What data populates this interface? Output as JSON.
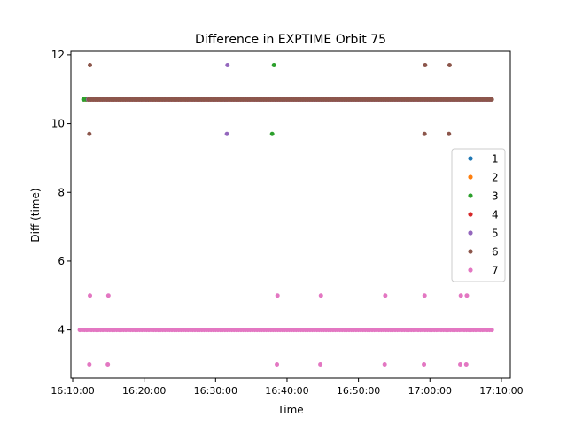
{
  "chart_data": {
    "type": "scatter",
    "title": "Difference in EXPTIME Orbit 75",
    "xlabel": "Time",
    "ylabel": "Diff (time)",
    "xlim": [
      "16:09:45",
      "17:11:15"
    ],
    "ylim": [
      2.6,
      12.1
    ],
    "x_ticks": [
      "16:10:00",
      "16:20:00",
      "16:30:00",
      "16:40:00",
      "16:50:00",
      "17:00:00",
      "17:10:00"
    ],
    "y_ticks": [
      4,
      6,
      8,
      10,
      12
    ],
    "grid": false,
    "legend_position": "center-right",
    "series": [
      {
        "name": "1",
        "color": "#1f77b4",
        "main_line": {
          "value": 10.7,
          "start": "16:11:35",
          "end": "17:08:25"
        },
        "points": []
      },
      {
        "name": "2",
        "color": "#ff7f0e",
        "main_line": {
          "value": 10.7,
          "start": "16:11:40",
          "end": "17:08:30"
        },
        "points": []
      },
      {
        "name": "3",
        "color": "#2ca02c",
        "main_line": {
          "value": 10.7,
          "start": "16:11:30",
          "end": "17:08:35"
        },
        "points": [
          {
            "x": "16:38:10",
            "y": 11.7
          },
          {
            "x": "16:37:55",
            "y": 9.7
          }
        ]
      },
      {
        "name": "4",
        "color": "#d62728",
        "main_line": {
          "value": 10.7,
          "start": "16:12:10",
          "end": "17:08:30"
        },
        "points": []
      },
      {
        "name": "5",
        "color": "#9467bd",
        "main_line": {
          "value": 10.7,
          "start": "16:12:10",
          "end": "17:08:30"
        },
        "points": [
          {
            "x": "16:31:40",
            "y": 11.7
          },
          {
            "x": "16:31:35",
            "y": 9.7
          }
        ]
      },
      {
        "name": "6",
        "color": "#8c564b",
        "main_line": {
          "value": 10.7,
          "start": "16:12:15",
          "end": "17:08:40"
        },
        "points": [
          {
            "x": "16:12:25",
            "y": 11.7
          },
          {
            "x": "16:12:20",
            "y": 9.7
          },
          {
            "x": "16:59:20",
            "y": 11.7
          },
          {
            "x": "16:59:15",
            "y": 9.7
          },
          {
            "x": "17:02:45",
            "y": 11.7
          },
          {
            "x": "17:02:40",
            "y": 9.7
          }
        ]
      },
      {
        "name": "7",
        "color": "#e377c2",
        "main_line": {
          "value": 4.0,
          "start": "16:11:00",
          "end": "17:08:40"
        },
        "points": [
          {
            "x": "16:12:25",
            "y": 5.0
          },
          {
            "x": "16:12:20",
            "y": 3.0
          },
          {
            "x": "16:15:00",
            "y": 5.0
          },
          {
            "x": "16:14:55",
            "y": 3.0
          },
          {
            "x": "16:38:40",
            "y": 5.0
          },
          {
            "x": "16:38:35",
            "y": 3.0
          },
          {
            "x": "16:44:45",
            "y": 5.0
          },
          {
            "x": "16:44:40",
            "y": 3.0
          },
          {
            "x": "16:53:45",
            "y": 5.0
          },
          {
            "x": "16:53:40",
            "y": 3.0
          },
          {
            "x": "16:59:15",
            "y": 5.0
          },
          {
            "x": "16:59:10",
            "y": 3.0
          },
          {
            "x": "17:04:20",
            "y": 5.0
          },
          {
            "x": "17:04:15",
            "y": 3.0
          },
          {
            "x": "17:05:10",
            "y": 5.0
          },
          {
            "x": "17:05:05",
            "y": 3.0
          }
        ]
      }
    ]
  }
}
